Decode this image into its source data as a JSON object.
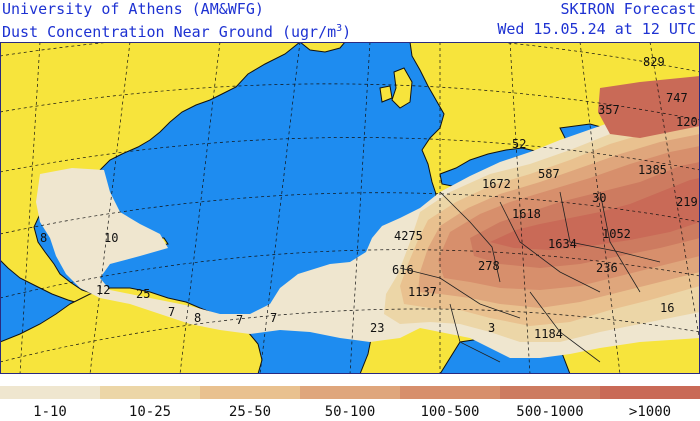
{
  "header": {
    "institution": "University of Athens (AM&WFG)",
    "product_prefix": "Dust Concentration Near Ground (ugr/m",
    "product_exp": "3",
    "product_suffix": ")",
    "forecast_title": "SKIRON Forecast",
    "valid_time": "Wed 15.05.24 at 12 UTC"
  },
  "colors": {
    "ocean": "#1e8cf0",
    "land": "#f7e43c",
    "frame": "#2a2a80"
  },
  "legend": [
    {
      "label": "1-10",
      "color": "#efe6cf"
    },
    {
      "label": "10-25",
      "color": "#ecd6a7"
    },
    {
      "label": "25-50",
      "color": "#e9c18f"
    },
    {
      "label": "50-100",
      "color": "#dfa67c"
    },
    {
      "label": "100-500",
      "color": "#d78f6c"
    },
    {
      "label": "500-1000",
      "color": "#cd7b60"
    },
    {
      "label": ">1000",
      "color": "#c96a57"
    }
  ],
  "values": [
    "829",
    "747",
    "357",
    "120",
    "52",
    "1385",
    "587",
    "1672",
    "30",
    "219",
    "1618",
    "8",
    "10",
    "1634",
    "1052",
    "4275",
    "616",
    "278",
    "236",
    "12",
    "25",
    "1137",
    "7",
    "8",
    "7",
    "7",
    "23",
    "3",
    "1184",
    "16"
  ]
}
